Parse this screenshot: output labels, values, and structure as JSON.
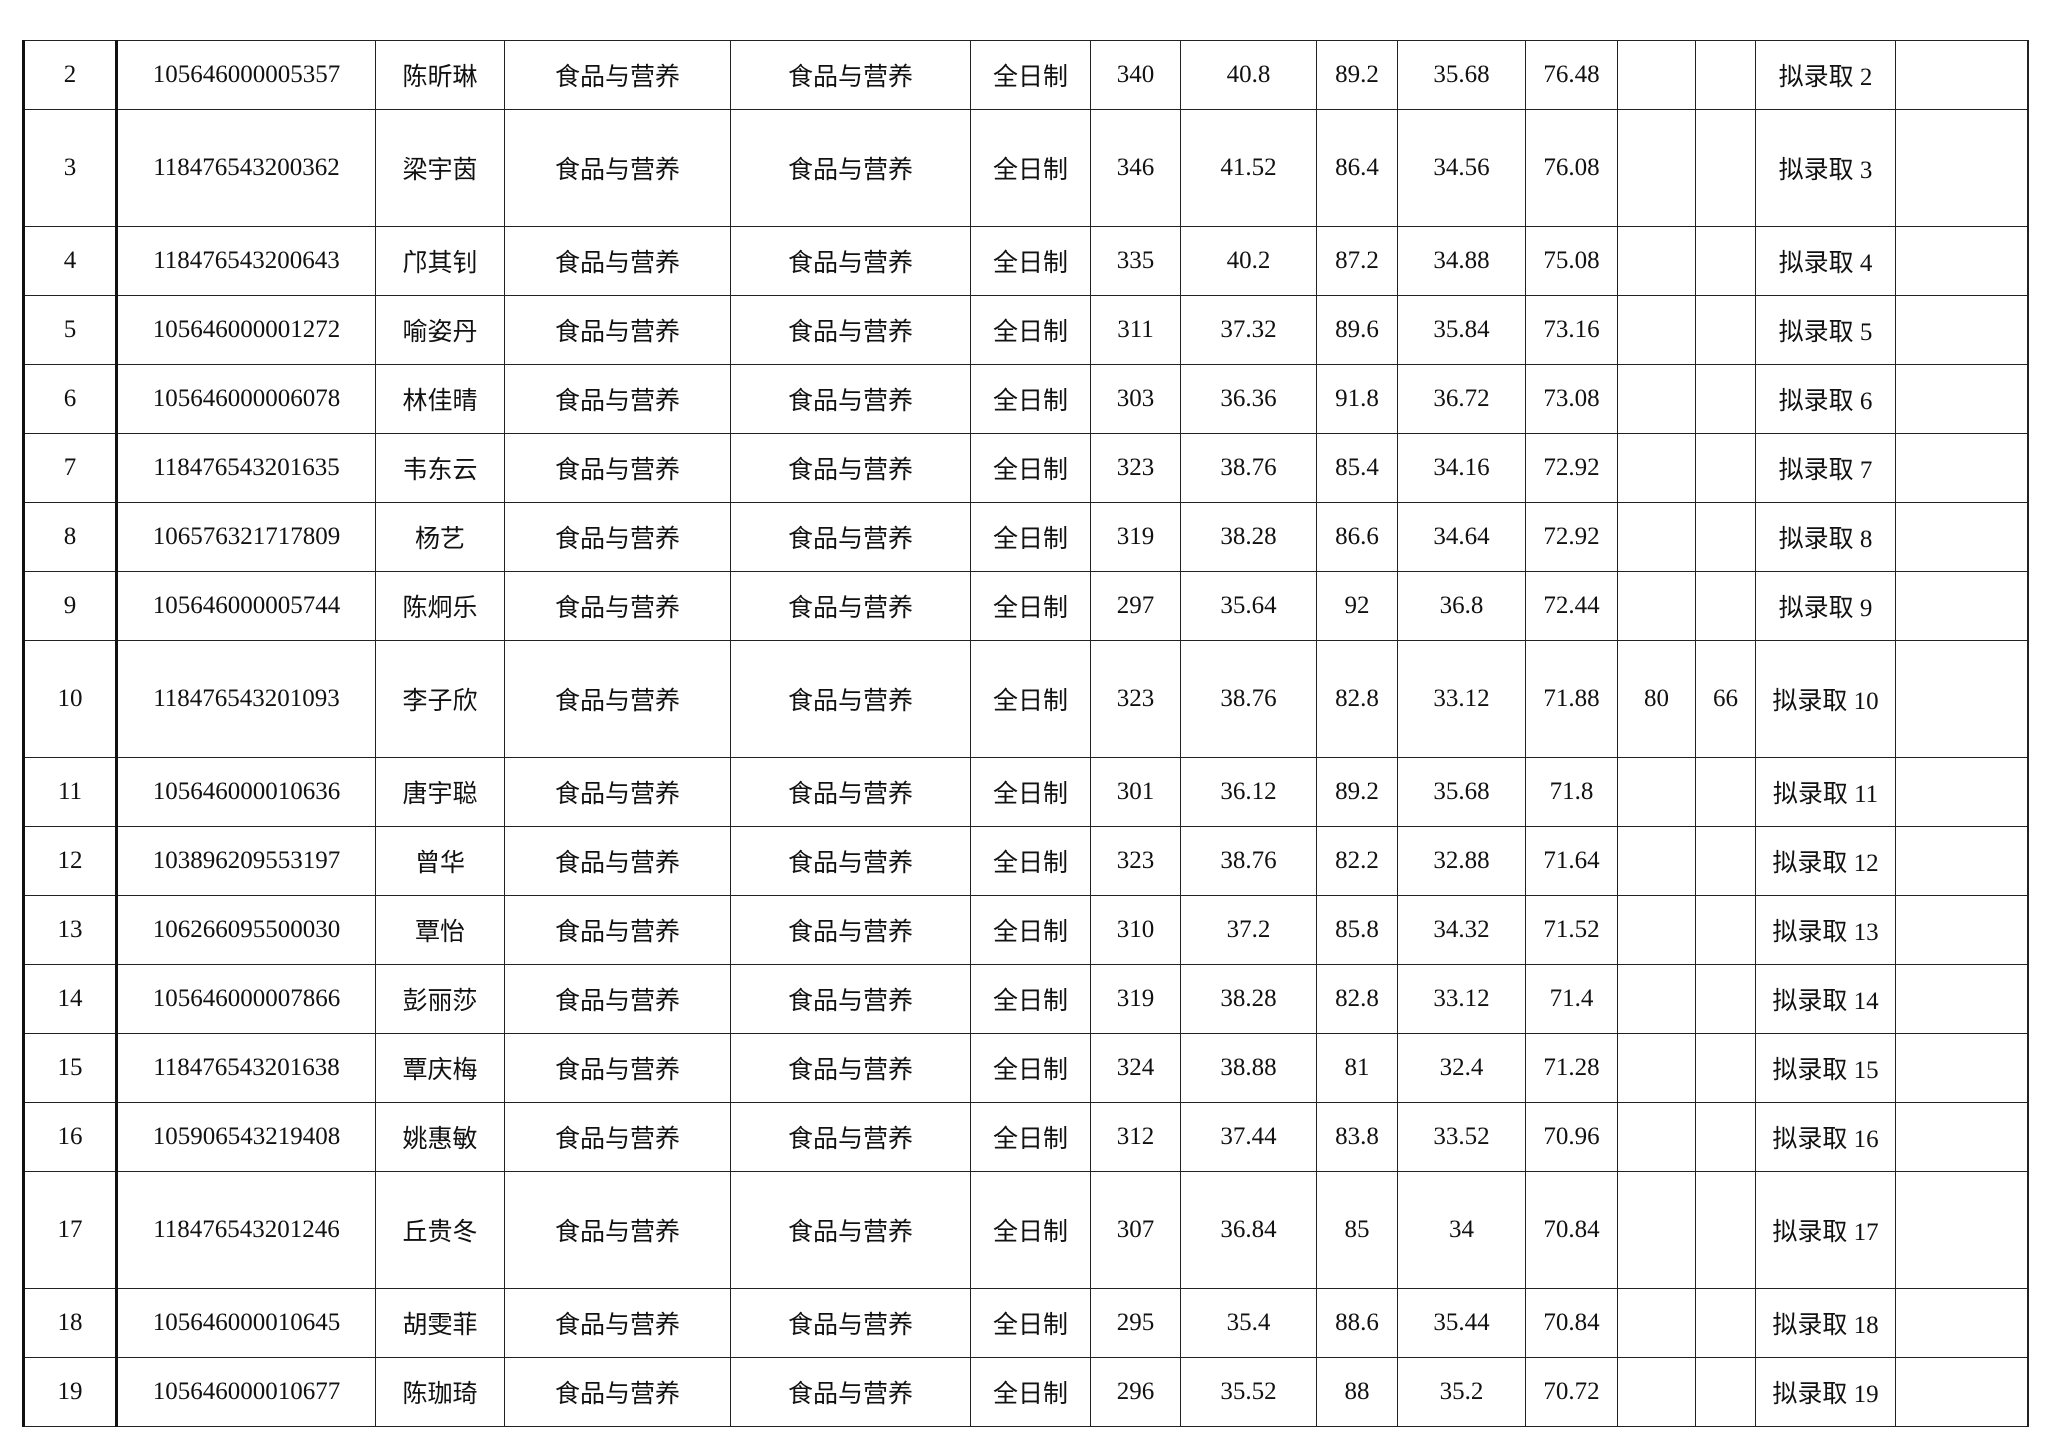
{
  "table": {
    "rows": [
      {
        "no": "2",
        "id": "105646000005357",
        "name": "陈昕琳",
        "dept": "食品与营养",
        "major": "食品与营养",
        "mode": "全日制",
        "prelim": "340",
        "prelim_w": "40.8",
        "retest": "89.2",
        "retest_w": "35.68",
        "total": "76.48",
        "c1": "",
        "c2": "",
        "result": "拟录取 2",
        "note": "",
        "tall": false
      },
      {
        "no": "3",
        "id": "118476543200362",
        "name": "梁宇茵",
        "dept": "食品与营养",
        "major": "食品与营养",
        "mode": "全日制",
        "prelim": "346",
        "prelim_w": "41.52",
        "retest": "86.4",
        "retest_w": "34.56",
        "total": "76.08",
        "c1": "",
        "c2": "",
        "result": "拟录取 3",
        "note": "",
        "tall": true
      },
      {
        "no": "4",
        "id": "118476543200643",
        "name": "邝其钊",
        "dept": "食品与营养",
        "major": "食品与营养",
        "mode": "全日制",
        "prelim": "335",
        "prelim_w": "40.2",
        "retest": "87.2",
        "retest_w": "34.88",
        "total": "75.08",
        "c1": "",
        "c2": "",
        "result": "拟录取 4",
        "note": "",
        "tall": false
      },
      {
        "no": "5",
        "id": "105646000001272",
        "name": "喻姿丹",
        "dept": "食品与营养",
        "major": "食品与营养",
        "mode": "全日制",
        "prelim": "311",
        "prelim_w": "37.32",
        "retest": "89.6",
        "retest_w": "35.84",
        "total": "73.16",
        "c1": "",
        "c2": "",
        "result": "拟录取 5",
        "note": "",
        "tall": false
      },
      {
        "no": "6",
        "id": "105646000006078",
        "name": "林佳晴",
        "dept": "食品与营养",
        "major": "食品与营养",
        "mode": "全日制",
        "prelim": "303",
        "prelim_w": "36.36",
        "retest": "91.8",
        "retest_w": "36.72",
        "total": "73.08",
        "c1": "",
        "c2": "",
        "result": "拟录取 6",
        "note": "",
        "tall": false
      },
      {
        "no": "7",
        "id": "118476543201635",
        "name": "韦东云",
        "dept": "食品与营养",
        "major": "食品与营养",
        "mode": "全日制",
        "prelim": "323",
        "prelim_w": "38.76",
        "retest": "85.4",
        "retest_w": "34.16",
        "total": "72.92",
        "c1": "",
        "c2": "",
        "result": "拟录取 7",
        "note": "",
        "tall": false
      },
      {
        "no": "8",
        "id": "106576321717809",
        "name": "杨艺",
        "dept": "食品与营养",
        "major": "食品与营养",
        "mode": "全日制",
        "prelim": "319",
        "prelim_w": "38.28",
        "retest": "86.6",
        "retest_w": "34.64",
        "total": "72.92",
        "c1": "",
        "c2": "",
        "result": "拟录取 8",
        "note": "",
        "tall": false
      },
      {
        "no": "9",
        "id": "105646000005744",
        "name": "陈炯乐",
        "dept": "食品与营养",
        "major": "食品与营养",
        "mode": "全日制",
        "prelim": "297",
        "prelim_w": "35.64",
        "retest": "92",
        "retest_w": "36.8",
        "total": "72.44",
        "c1": "",
        "c2": "",
        "result": "拟录取 9",
        "note": "",
        "tall": false
      },
      {
        "no": "10",
        "id": "118476543201093",
        "name": "李子欣",
        "dept": "食品与营养",
        "major": "食品与营养",
        "mode": "全日制",
        "prelim": "323",
        "prelim_w": "38.76",
        "retest": "82.8",
        "retest_w": "33.12",
        "total": "71.88",
        "c1": "80",
        "c2": "66",
        "result": "拟录取 10",
        "note": "",
        "tall": true
      },
      {
        "no": "11",
        "id": "105646000010636",
        "name": "唐宇聪",
        "dept": "食品与营养",
        "major": "食品与营养",
        "mode": "全日制",
        "prelim": "301",
        "prelim_w": "36.12",
        "retest": "89.2",
        "retest_w": "35.68",
        "total": "71.8",
        "c1": "",
        "c2": "",
        "result": "拟录取 11",
        "note": "",
        "tall": false
      },
      {
        "no": "12",
        "id": "103896209553197",
        "name": "曾华",
        "dept": "食品与营养",
        "major": "食品与营养",
        "mode": "全日制",
        "prelim": "323",
        "prelim_w": "38.76",
        "retest": "82.2",
        "retest_w": "32.88",
        "total": "71.64",
        "c1": "",
        "c2": "",
        "result": "拟录取 12",
        "note": "",
        "tall": false
      },
      {
        "no": "13",
        "id": "106266095500030",
        "name": "覃怡",
        "dept": "食品与营养",
        "major": "食品与营养",
        "mode": "全日制",
        "prelim": "310",
        "prelim_w": "37.2",
        "retest": "85.8",
        "retest_w": "34.32",
        "total": "71.52",
        "c1": "",
        "c2": "",
        "result": "拟录取 13",
        "note": "",
        "tall": false
      },
      {
        "no": "14",
        "id": "105646000007866",
        "name": "彭丽莎",
        "dept": "食品与营养",
        "major": "食品与营养",
        "mode": "全日制",
        "prelim": "319",
        "prelim_w": "38.28",
        "retest": "82.8",
        "retest_w": "33.12",
        "total": "71.4",
        "c1": "",
        "c2": "",
        "result": "拟录取 14",
        "note": "",
        "tall": false
      },
      {
        "no": "15",
        "id": "118476543201638",
        "name": "覃庆梅",
        "dept": "食品与营养",
        "major": "食品与营养",
        "mode": "全日制",
        "prelim": "324",
        "prelim_w": "38.88",
        "retest": "81",
        "retest_w": "32.4",
        "total": "71.28",
        "c1": "",
        "c2": "",
        "result": "拟录取 15",
        "note": "",
        "tall": false
      },
      {
        "no": "16",
        "id": "105906543219408",
        "name": "姚惠敏",
        "dept": "食品与营养",
        "major": "食品与营养",
        "mode": "全日制",
        "prelim": "312",
        "prelim_w": "37.44",
        "retest": "83.8",
        "retest_w": "33.52",
        "total": "70.96",
        "c1": "",
        "c2": "",
        "result": "拟录取 16",
        "note": "",
        "tall": false
      },
      {
        "no": "17",
        "id": "118476543201246",
        "name": "丘贵冬",
        "dept": "食品与营养",
        "major": "食品与营养",
        "mode": "全日制",
        "prelim": "307",
        "prelim_w": "36.84",
        "retest": "85",
        "retest_w": "34",
        "total": "70.84",
        "c1": "",
        "c2": "",
        "result": "拟录取 17",
        "note": "",
        "tall": true
      },
      {
        "no": "18",
        "id": "105646000010645",
        "name": "胡雯菲",
        "dept": "食品与营养",
        "major": "食品与营养",
        "mode": "全日制",
        "prelim": "295",
        "prelim_w": "35.4",
        "retest": "88.6",
        "retest_w": "35.44",
        "total": "70.84",
        "c1": "",
        "c2": "",
        "result": "拟录取 18",
        "note": "",
        "tall": false
      },
      {
        "no": "19",
        "id": "105646000010677",
        "name": "陈珈琦",
        "dept": "食品与营养",
        "major": "食品与营养",
        "mode": "全日制",
        "prelim": "296",
        "prelim_w": "35.52",
        "retest": "88",
        "retest_w": "35.2",
        "total": "70.72",
        "c1": "",
        "c2": "",
        "result": "拟录取 19",
        "note": "",
        "tall": false
      }
    ]
  }
}
